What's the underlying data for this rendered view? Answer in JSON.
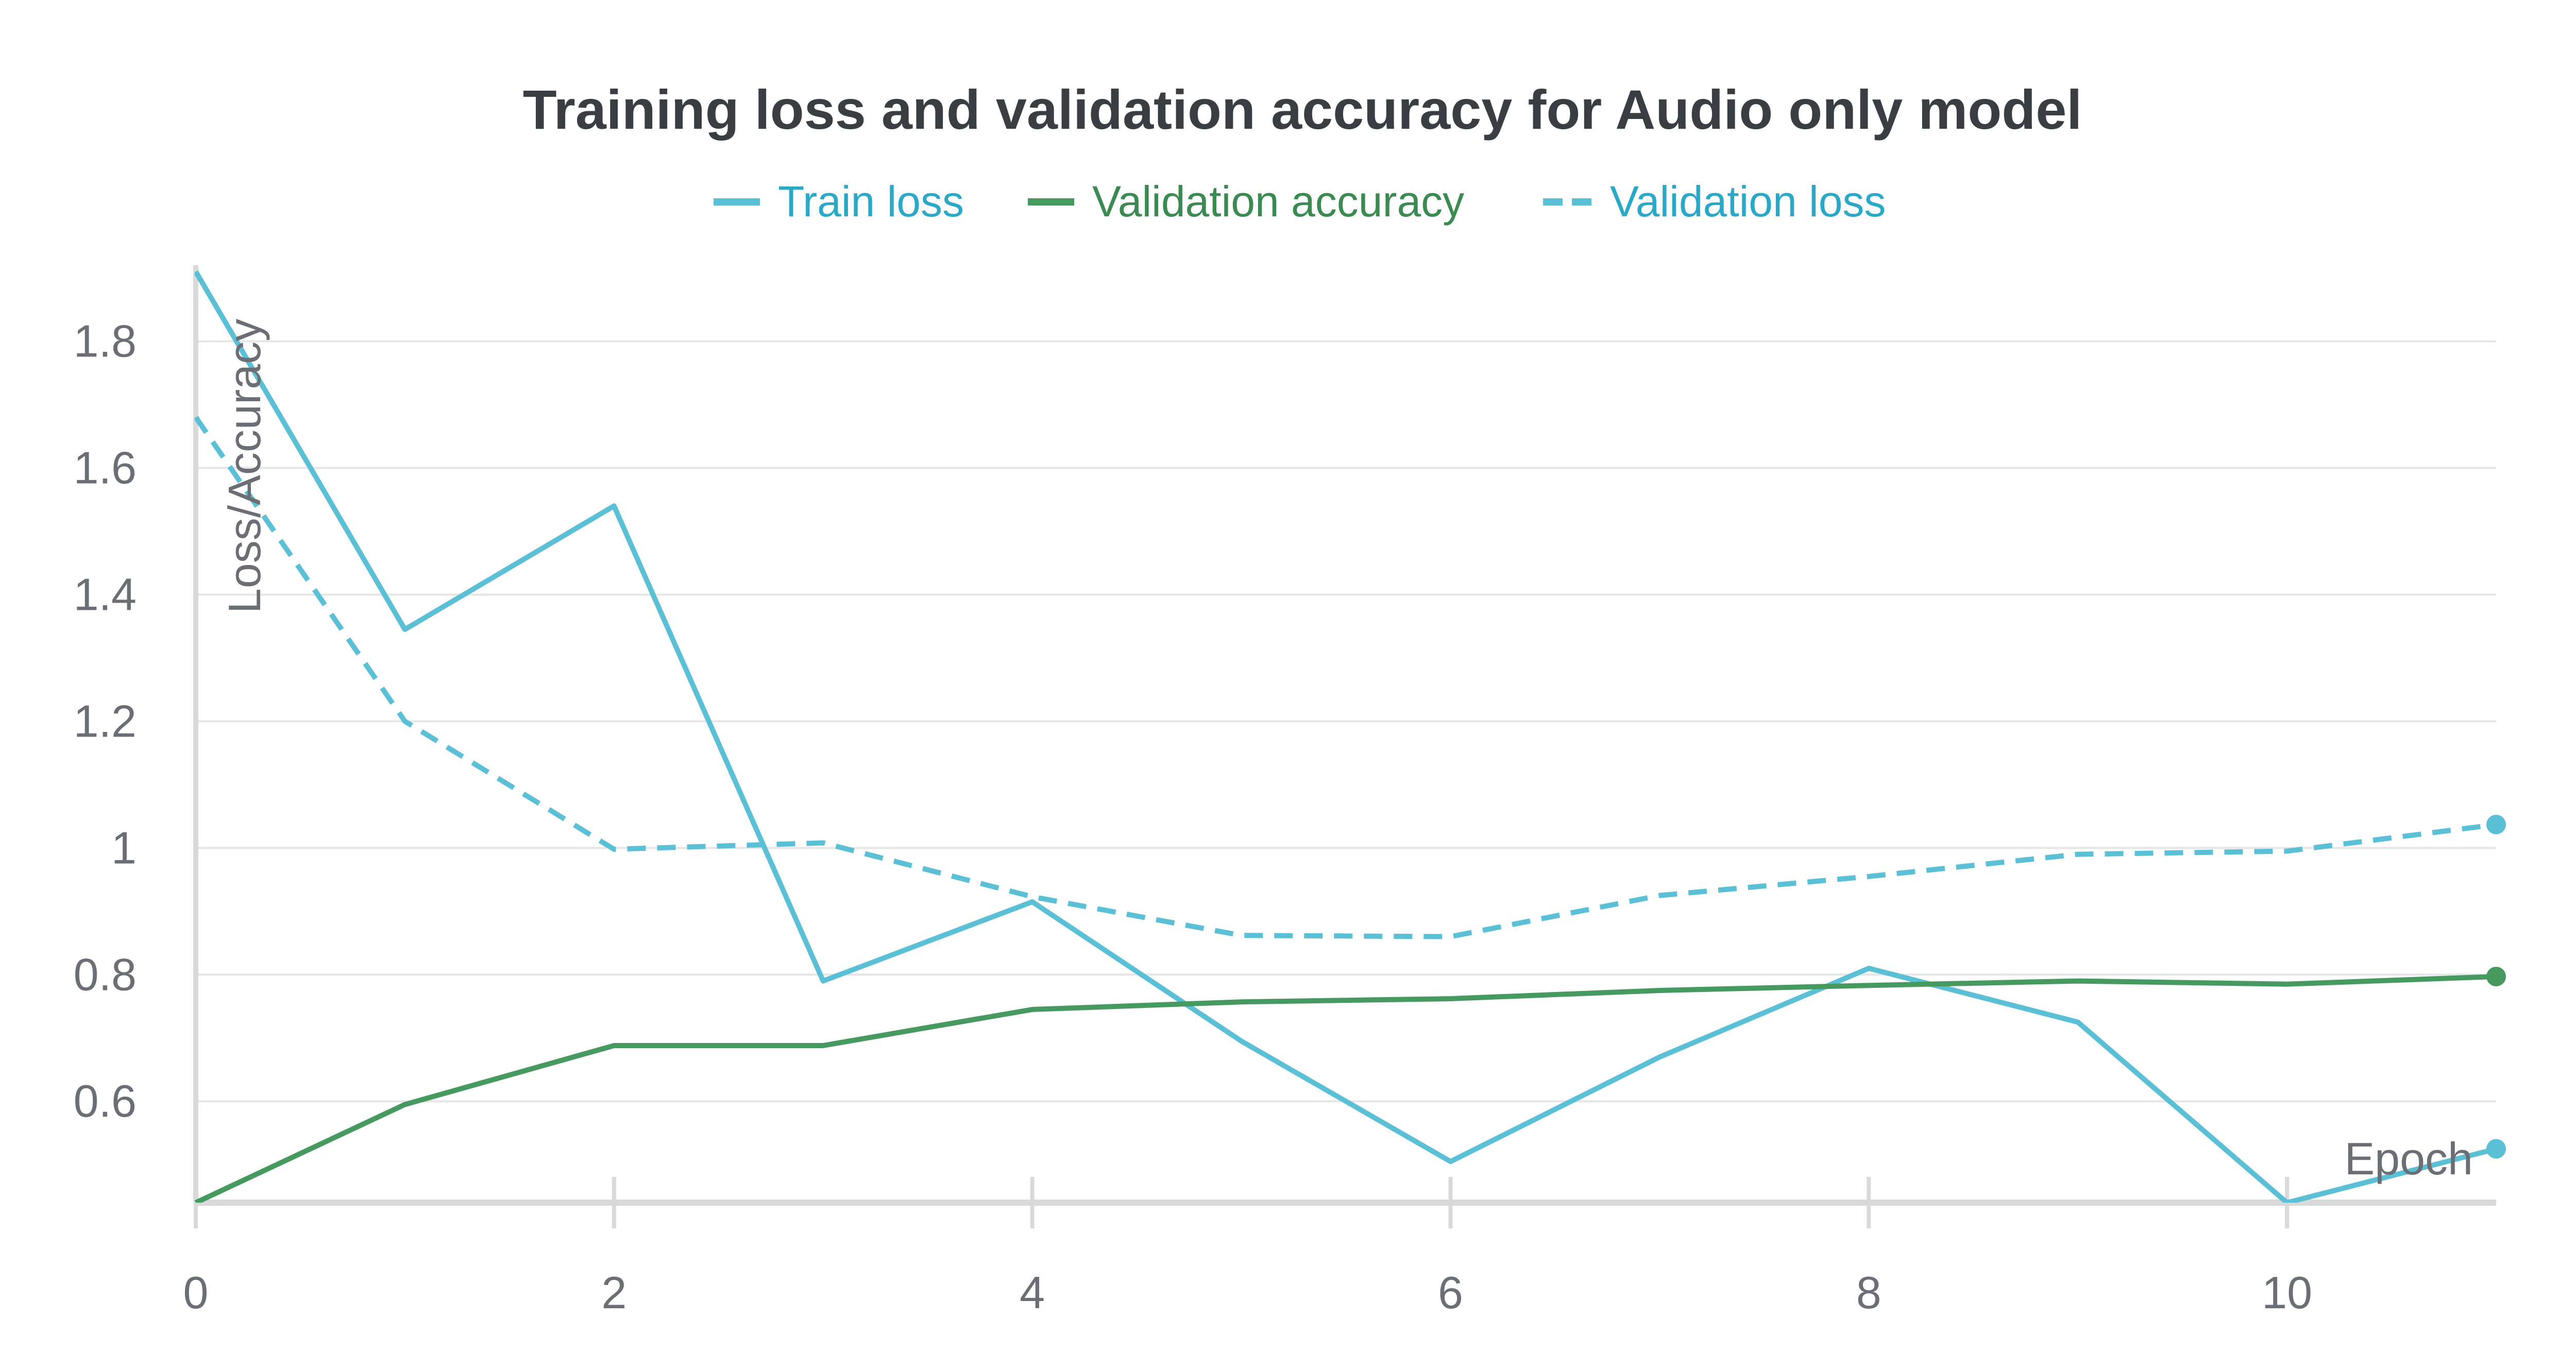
{
  "chart_data": {
    "type": "line",
    "title": "Training loss and validation accuracy for Audio only model",
    "xlabel": "Epoch",
    "ylabel": "Loss/Accuracy",
    "xlim": [
      0,
      11
    ],
    "ylim": [
      0.44,
      1.92
    ],
    "x_ticks": [
      0,
      2,
      4,
      6,
      8,
      10
    ],
    "x_tick_labels": [
      "0",
      "2",
      "4",
      "6",
      "8",
      "10"
    ],
    "y_ticks": [
      0.6,
      0.8,
      1.0,
      1.2,
      1.4,
      1.6,
      1.8
    ],
    "y_tick_labels": [
      "0.6",
      "0.8",
      "1",
      "1.2",
      "1.4",
      "1.6",
      "1.8"
    ],
    "grid": true,
    "legend_position": "top-center",
    "x": [
      0,
      1,
      2,
      3,
      4,
      5,
      6,
      7,
      8,
      9,
      10,
      11
    ],
    "series": [
      {
        "name": "Train loss",
        "color": "#5bc0d6",
        "dashed": false,
        "values": [
          1.91,
          1.345,
          1.54,
          0.79,
          0.915,
          0.695,
          0.505,
          0.67,
          0.81,
          0.725,
          0.44,
          0.525
        ]
      },
      {
        "name": "Validation accuracy",
        "color": "#479a5f",
        "dashed": false,
        "values": [
          0.44,
          0.595,
          0.688,
          0.688,
          0.745,
          0.757,
          0.762,
          0.775,
          0.783,
          0.79,
          0.785,
          0.797
        ]
      },
      {
        "name": "Validation loss",
        "color": "#5bc0d6",
        "dashed": true,
        "values": [
          1.68,
          1.2,
          0.998,
          1.008,
          0.923,
          0.862,
          0.86,
          0.925,
          0.955,
          0.99,
          0.995,
          1.037
        ]
      }
    ]
  },
  "colors": {
    "title": "#3a3d42",
    "axis_text": "#6b6f75",
    "grid": "#e6e6e6",
    "axis": "#d9d9d9"
  }
}
